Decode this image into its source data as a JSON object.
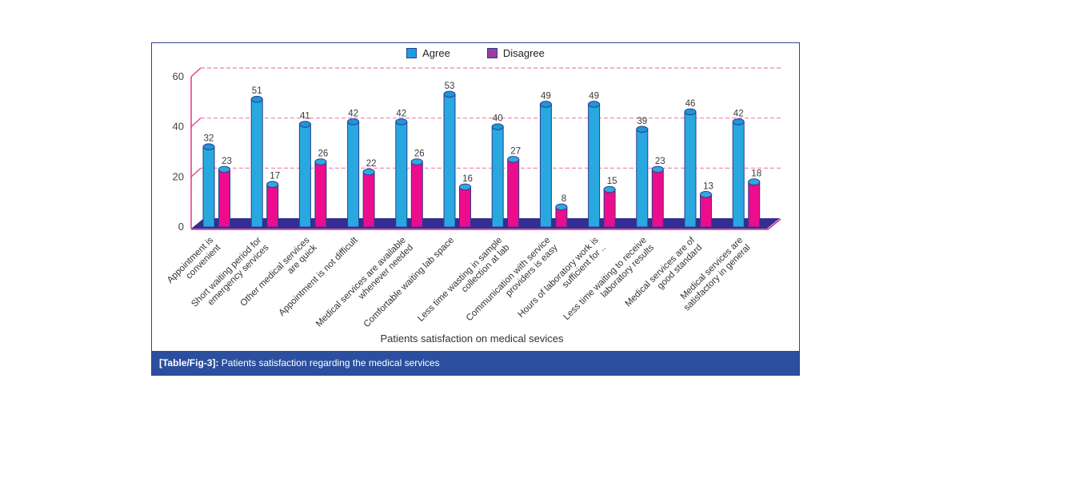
{
  "figure": {
    "caption": {
      "tag": "[Table/Fig-3]:",
      "text": " Patients satisfaction regarding the medical services"
    }
  },
  "legend": [
    {
      "label": "Agree",
      "swatch_color": "#1c9fe0"
    },
    {
      "label": "Disagree",
      "swatch_color": "#9c3d9e"
    }
  ],
  "chart_data": {
    "type": "bar",
    "subtype": "3d-cylinder",
    "title": "",
    "xlabel": "Patients satisfaction on medical sevices",
    "ylabel": "",
    "ylim": [
      0,
      60
    ],
    "yticks": [
      0,
      20,
      40,
      60
    ],
    "grid": "dashed horizontal gridlines, pink, 3D perspective offset",
    "legend_position": "top-center",
    "categories": [
      "Appointment is convenient",
      "Short waiting period for emergency services",
      "Other medical services are quick",
      "Appointment is not difficult",
      "Medical services are available whenever needed",
      "Comfortable waiting lab space",
      "Less time wasting in sample collection at lab",
      "Communication with service providers is easy",
      "Hours of laboratory work is sufficient for ..",
      "Less time waiting to receive laboratory results",
      "Medical services are of good standard",
      "Medical services are satisfactory in general"
    ],
    "categories_multiline": [
      [
        "Appointment is",
        "convenient"
      ],
      [
        "Short waiting period for",
        "emergency services"
      ],
      [
        "Other medical services",
        "are quick"
      ],
      [
        "Appointment is not difficult"
      ],
      [
        "Medical services are available",
        "whenever needed"
      ],
      [
        "Comfortable waiting lab space"
      ],
      [
        "Less time wasting in sample",
        "collection at lab"
      ],
      [
        "Communication with service",
        "providers is easy"
      ],
      [
        "Hours of laboratory work is",
        "sufficient for .."
      ],
      [
        "Less time waiting to receive",
        "laboratory results"
      ],
      [
        "Medical services are of",
        "good standard"
      ],
      [
        "Medical services are",
        "satisfactory in general"
      ]
    ],
    "series": [
      {
        "name": "Agree",
        "body_color": "#29a8e0",
        "top_color": "#1e96d6",
        "values": [
          32,
          51,
          41,
          42,
          42,
          53,
          40,
          49,
          49,
          39,
          46,
          42
        ]
      },
      {
        "name": "Disagree",
        "body_color": "#ec0c8c",
        "top_color": "#2fa9e0",
        "values": [
          23,
          17,
          26,
          22,
          26,
          16,
          27,
          8,
          15,
          23,
          13,
          18
        ]
      }
    ]
  },
  "colors": {
    "axis_line": "#e8308a",
    "gridline": "#f07eb5",
    "floor_fill": "#332e91",
    "floor_edge": "#d6268c",
    "bar_outline": "#2c3e8f",
    "tick_label": "#444444",
    "value_label": "#3a3a3a",
    "category_label": "#333333",
    "caption_bg": "#2b4f9e",
    "figure_border": "#2e4494"
  }
}
